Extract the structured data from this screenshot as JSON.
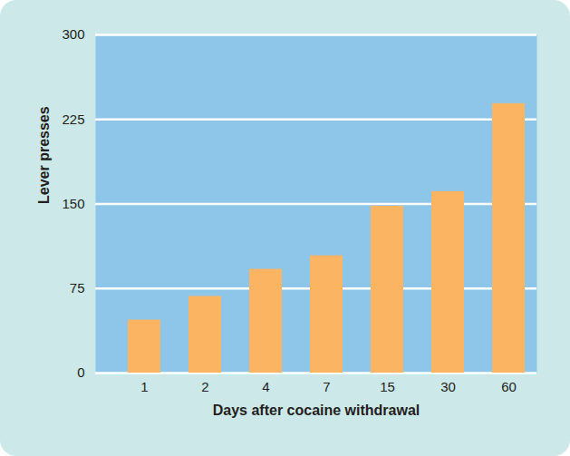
{
  "chart_data": {
    "type": "bar",
    "xlabel": "Days after cocaine withdrawal",
    "ylabel": "Lever presses",
    "categories": [
      "1",
      "2",
      "4",
      "7",
      "15",
      "30",
      "60"
    ],
    "values": [
      47,
      68,
      92,
      104,
      148,
      161,
      239
    ],
    "color": "#fbb462",
    "ylim": [
      0,
      300
    ],
    "yticks": [
      0,
      75,
      150,
      225,
      300
    ],
    "grid": true
  }
}
